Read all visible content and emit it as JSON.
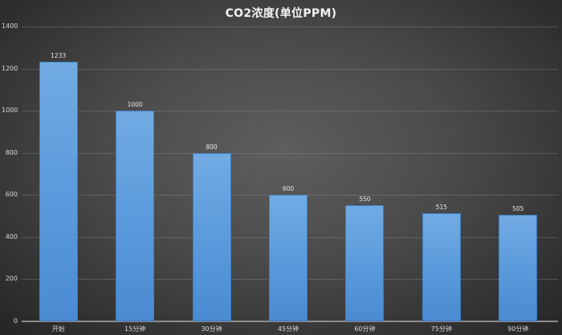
{
  "chart_data": {
    "type": "bar",
    "title": "CO2浓度(单位PPM)",
    "xlabel": "",
    "ylabel": "",
    "categories": [
      "开始",
      "15分钟",
      "30分钟",
      "45分钟",
      "60分钟",
      "75分钟",
      "90分钟"
    ],
    "values": [
      1233,
      1000,
      800,
      600,
      550,
      515,
      505
    ],
    "ylim": [
      0,
      1400
    ],
    "yticks": [
      0,
      200,
      400,
      600,
      800,
      1000,
      1200,
      1400
    ],
    "grid": true,
    "legend": null,
    "data_labels": true,
    "colors": {
      "bar": "#5b9bdc",
      "background": "#4a4a4a",
      "text": "#d9d9d9"
    }
  },
  "labels": {
    "title": "CO2浓度(单位PPM)",
    "yticks": [
      "0",
      "200",
      "400",
      "600",
      "800",
      "1000",
      "1200",
      "1400"
    ],
    "categories": [
      "开始",
      "15分钟",
      "30分钟",
      "45分钟",
      "60分钟",
      "75分钟",
      "90分钟"
    ],
    "values": [
      "1233",
      "1000",
      "800",
      "600",
      "550",
      "515",
      "505"
    ]
  }
}
